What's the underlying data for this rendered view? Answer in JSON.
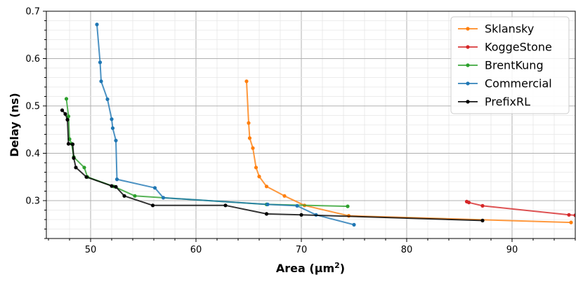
{
  "chart_data": {
    "type": "line",
    "title": "",
    "xlabel": "Area (µm",
    "xlabel_sup": "2",
    "xlabel_close": ")",
    "ylabel": "Delay (ns)",
    "xlim": [
      45.8,
      96.0
    ],
    "ylim": [
      0.22,
      0.7
    ],
    "x_ticks": [
      50,
      60,
      70,
      80,
      90
    ],
    "y_ticks": [
      0.3,
      0.4,
      0.5,
      0.6,
      0.7
    ],
    "x_tick_labels": [
      "50",
      "60",
      "70",
      "80",
      "90"
    ],
    "y_tick_labels": [
      "0.3",
      "0.4",
      "0.5",
      "0.6",
      "0.7"
    ],
    "grid": true,
    "legend_position": "top-right",
    "series": [
      {
        "name": "Sklansky",
        "color": "#ff7f0e",
        "points": [
          [
            64.8,
            0.552
          ],
          [
            65.0,
            0.464
          ],
          [
            65.1,
            0.432
          ],
          [
            65.4,
            0.411
          ],
          [
            65.7,
            0.37
          ],
          [
            66.0,
            0.351
          ],
          [
            66.7,
            0.33
          ],
          [
            68.4,
            0.31
          ],
          [
            70.3,
            0.29
          ],
          [
            74.5,
            0.268
          ],
          [
            95.6,
            0.254
          ]
        ]
      },
      {
        "name": "KoggeStone",
        "color": "#d62728",
        "points": [
          [
            85.7,
            0.298
          ],
          [
            85.9,
            0.296
          ],
          [
            87.2,
            0.289
          ],
          [
            95.4,
            0.27
          ],
          [
            96.0,
            0.269
          ]
        ]
      },
      {
        "name": "BrentKung",
        "color": "#2ca02c",
        "points": [
          [
            47.7,
            0.515
          ],
          [
            47.9,
            0.478
          ],
          [
            48.0,
            0.43
          ],
          [
            48.2,
            0.42
          ],
          [
            48.4,
            0.392
          ],
          [
            49.4,
            0.37
          ],
          [
            49.7,
            0.35
          ],
          [
            52.2,
            0.33
          ],
          [
            54.2,
            0.31
          ],
          [
            66.7,
            0.292
          ],
          [
            74.4,
            0.288
          ]
        ]
      },
      {
        "name": "Commercial",
        "color": "#1f77b4",
        "points": [
          [
            50.6,
            0.672
          ],
          [
            50.9,
            0.592
          ],
          [
            51.0,
            0.552
          ],
          [
            51.6,
            0.514
          ],
          [
            52.0,
            0.472
          ],
          [
            52.1,
            0.453
          ],
          [
            52.4,
            0.427
          ],
          [
            52.5,
            0.345
          ],
          [
            56.1,
            0.327
          ],
          [
            56.9,
            0.306
          ],
          [
            66.8,
            0.292
          ],
          [
            69.6,
            0.289
          ],
          [
            71.4,
            0.27
          ],
          [
            75.0,
            0.249
          ]
        ]
      },
      {
        "name": "PrefixRL",
        "color": "#000000",
        "points": [
          [
            47.3,
            0.491
          ],
          [
            47.6,
            0.483
          ],
          [
            47.8,
            0.471
          ],
          [
            47.9,
            0.42
          ],
          [
            48.3,
            0.419
          ],
          [
            48.4,
            0.39
          ],
          [
            48.6,
            0.37
          ],
          [
            49.6,
            0.35
          ],
          [
            52.0,
            0.331
          ],
          [
            52.4,
            0.329
          ],
          [
            53.2,
            0.31
          ],
          [
            55.9,
            0.29
          ],
          [
            62.8,
            0.29
          ],
          [
            66.7,
            0.272
          ],
          [
            70.0,
            0.27
          ],
          [
            87.2,
            0.258
          ]
        ]
      }
    ]
  }
}
